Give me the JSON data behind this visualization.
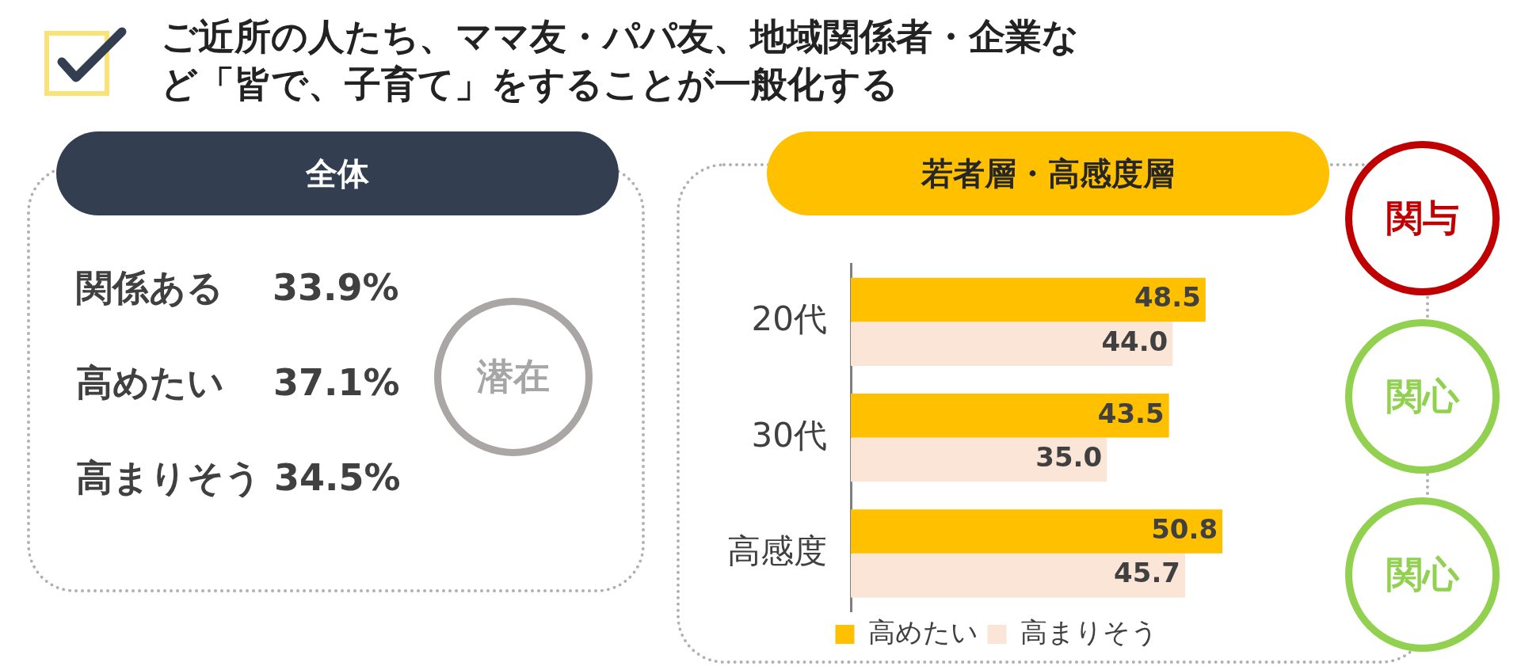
{
  "chart_data": [
    {
      "type": "other",
      "title": "ご近所の人たち、ママ友・パパ友、地域関係者・企業など「皆で、子育て」をすることが一般化する",
      "subtitle": "全体",
      "annotations": [
        "関係ある　 33.9%",
        "高めたい　 37.1%",
        "高まりそう 34.5%",
        "潜在"
      ]
    },
    {
      "type": "bar",
      "orientation": "horizontal",
      "title": "若者層・高感度層",
      "categories": [
        "20代",
        "30代",
        "高感度"
      ],
      "legend": "bottom",
      "annotations": [
        "関与",
        "関心",
        "関心"
      ],
      "series": [
        {
          "name": "高めたい",
          "color": "#ffc000",
          "values": [
            48.5,
            43.5,
            50.8
          ],
          "value_labels": [
            "48.5",
            "43.5",
            "50.8"
          ]
        },
        {
          "name": "高まりそう",
          "color": "#fbe5d6",
          "values": [
            44.0,
            35.0,
            45.7
          ],
          "value_labels": [
            "44.0",
            "35.0",
            "45.7"
          ]
        }
      ]
    }
  ]
}
